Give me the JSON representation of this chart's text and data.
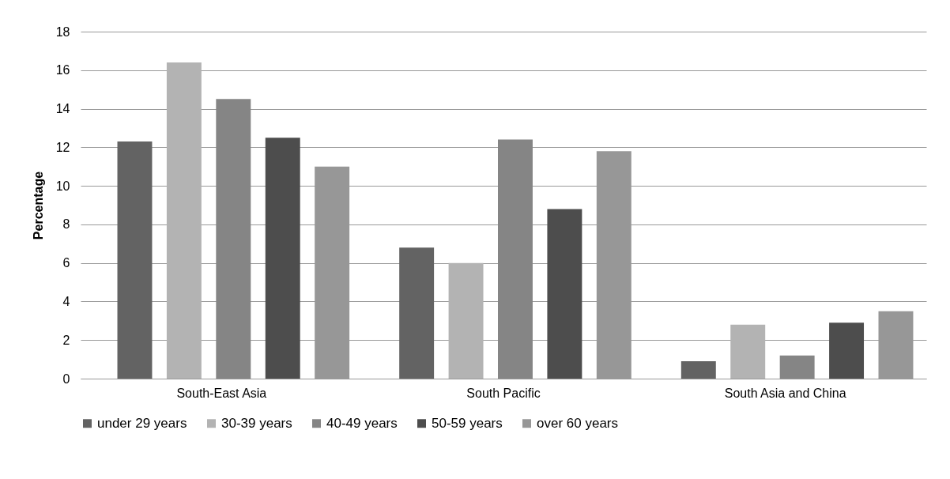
{
  "chart_data": {
    "type": "bar",
    "ylabel": "Percentage",
    "categories": [
      "South-East Asia",
      "South Pacific",
      "South Asia and China"
    ],
    "series": [
      {
        "name": "under 29 years",
        "color": "#636363",
        "values": [
          12.3,
          6.8,
          0.9
        ]
      },
      {
        "name": "30-39 years",
        "color": "#b3b3b3",
        "values": [
          16.4,
          6.0,
          2.8
        ]
      },
      {
        "name": "40-49 years",
        "color": "#858585",
        "values": [
          14.5,
          12.4,
          1.2
        ]
      },
      {
        "name": "50-59 years",
        "color": "#4d4d4d",
        "values": [
          12.5,
          8.8,
          2.9
        ]
      },
      {
        "name": "over 60 years",
        "color": "#979797",
        "values": [
          11.0,
          11.8,
          3.5
        ]
      }
    ],
    "ylim": [
      0,
      18
    ],
    "yticks": [
      0,
      2,
      4,
      6,
      8,
      10,
      12,
      14,
      16,
      18
    ],
    "grid": "y",
    "legend": "bottom"
  }
}
